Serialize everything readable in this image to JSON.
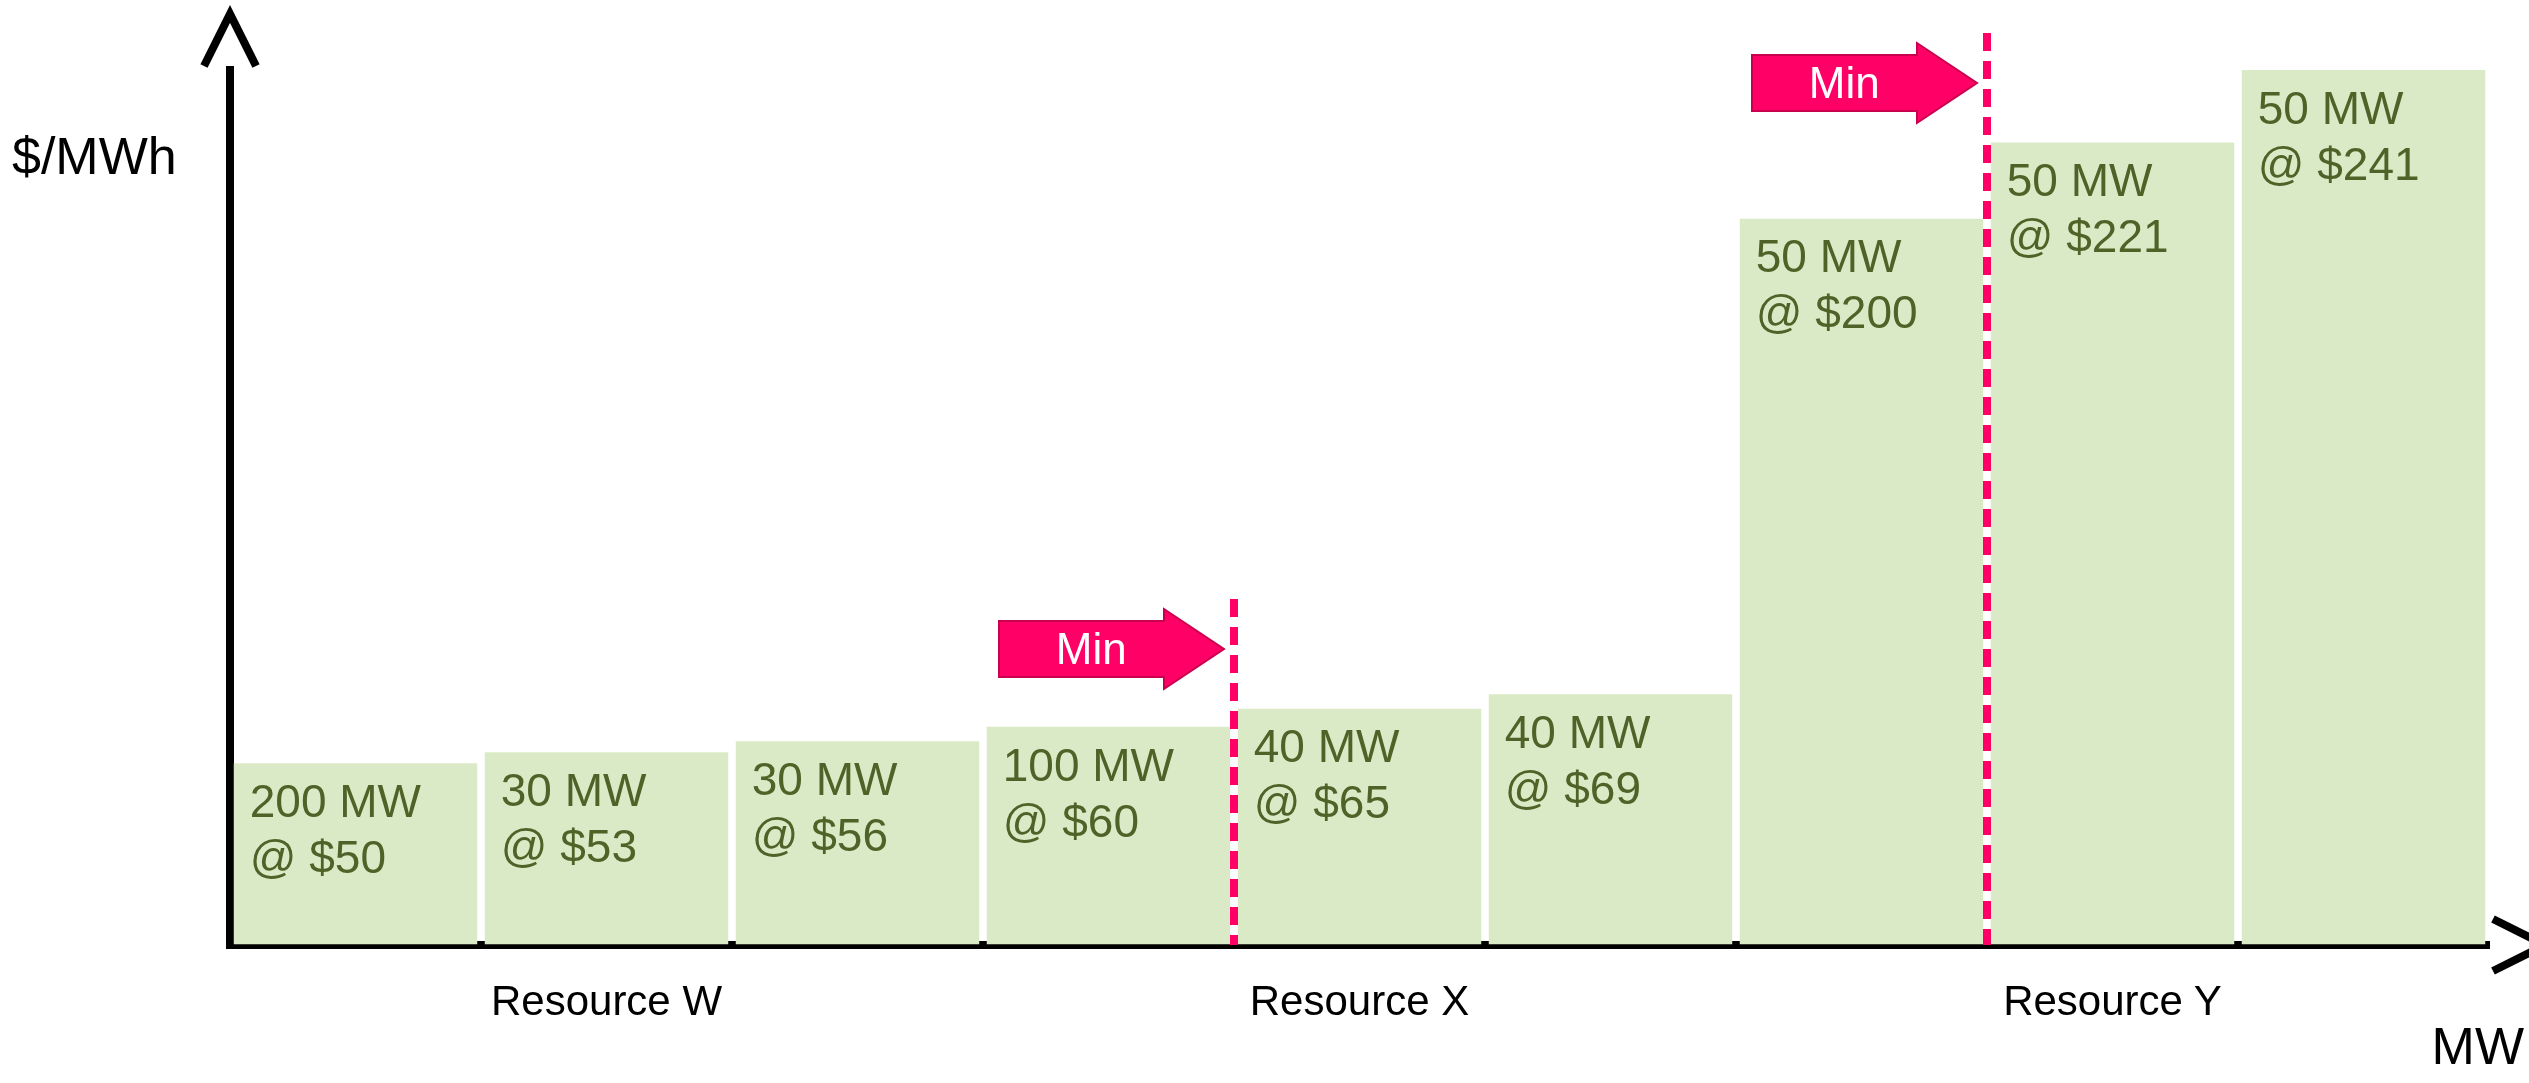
{
  "chart_data": {
    "type": "bar",
    "ylabel": "$/MWh",
    "xlabel": "MW",
    "categories": [
      null,
      "Resource W",
      null,
      null,
      "Resource X",
      null,
      null,
      "Resource Y",
      null
    ],
    "values": [
      50,
      53,
      56,
      60,
      65,
      69,
      200,
      221,
      241
    ],
    "color": "#dbeac6",
    "value_labels": [
      "200 MW\n@ $50",
      "30 MW\n@ $53",
      "30 MW\n@ $56",
      "100 MW\n@ $60",
      "40 MW\n@ $65",
      "40 MW\n@ $69",
      "50 MW\n@ $200",
      "50 MW\n@ $221",
      "50 MW\n@ $241"
    ],
    "annotations": [
      "Min",
      "Min"
    ],
    "grid": false,
    "legend": false,
    "tick_labels": "x"
  }
}
